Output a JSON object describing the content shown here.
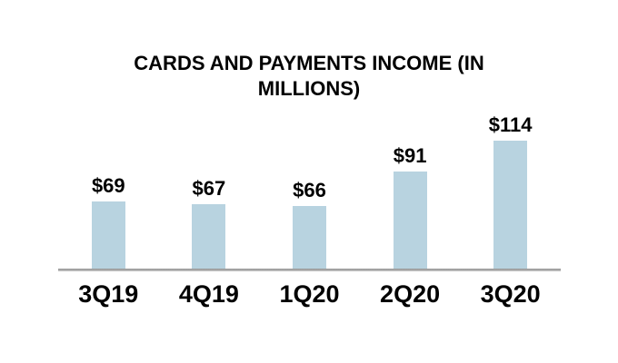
{
  "chart_data": {
    "type": "bar",
    "title": "CARDS AND PAYMENTS INCOME (IN MILLIONS)",
    "title_lines": [
      "CARDS AND PAYMENTS INCOME (IN",
      "MILLIONS)"
    ],
    "categories": [
      "3Q19",
      "4Q19",
      "1Q20",
      "2Q20",
      "3Q20"
    ],
    "values": [
      69,
      67,
      66,
      91,
      114
    ],
    "value_labels": [
      "$69",
      "$67",
      "$66",
      "$91",
      "$114"
    ],
    "xlabel": "",
    "ylabel": "",
    "ylim": [
      20,
      114
    ],
    "grid": false,
    "legend": false,
    "bar_color": "#B8D3E0",
    "axis_line_color": "#9B9B9B",
    "text_color": "#000000",
    "background_color": "#FFFFFF"
  }
}
